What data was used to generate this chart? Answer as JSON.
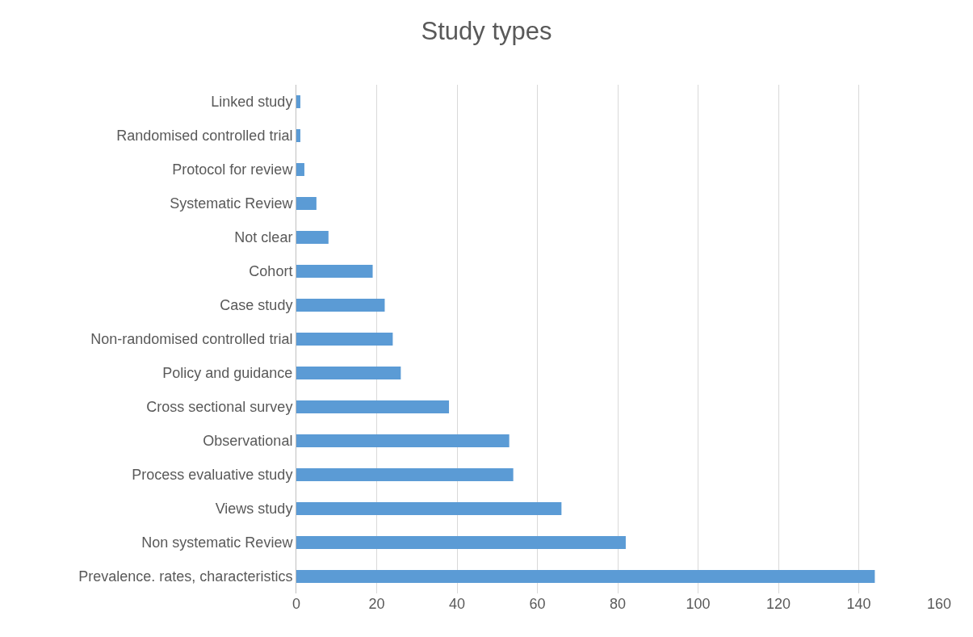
{
  "chart_data": {
    "type": "bar",
    "title": "Study types",
    "orientation": "horizontal",
    "categories": [
      "Linked study",
      "Randomised controlled trial",
      "Protocol for review",
      "Systematic Review",
      "Not clear",
      "Cohort",
      "Case study",
      "Non-randomised controlled trial",
      "Policy and guidance",
      "Cross sectional survey",
      "Observational",
      "Process evaluative study",
      "Views study",
      "Non systematic Review",
      "Prevalence. rates, characteristics"
    ],
    "values": [
      1,
      1,
      2,
      5,
      8,
      19,
      22,
      24,
      26,
      38,
      53,
      54,
      66,
      82,
      144
    ],
    "color": "#5b9bd5",
    "xlim": [
      0,
      160
    ],
    "xticks": [
      0,
      20,
      40,
      60,
      80,
      100,
      120,
      140,
      160
    ],
    "grid": "x",
    "legend": false
  }
}
